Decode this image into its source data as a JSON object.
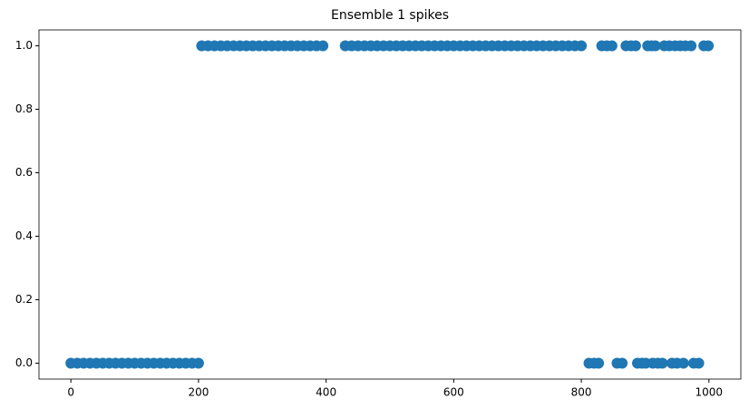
{
  "chart_data": {
    "type": "scatter",
    "title": "Ensemble 1 spikes",
    "series": [
      {
        "color": "#1f77b4",
        "x": [
          0,
          10,
          20,
          30,
          40,
          50,
          60,
          70,
          80,
          90,
          100,
          110,
          120,
          130,
          140,
          150,
          160,
          170,
          180,
          190,
          200,
          205,
          215,
          225,
          235,
          245,
          255,
          265,
          275,
          285,
          295,
          305,
          315,
          325,
          335,
          345,
          355,
          365,
          375,
          385,
          395,
          430,
          440,
          450,
          460,
          470,
          480,
          490,
          500,
          510,
          520,
          530,
          540,
          550,
          560,
          570,
          580,
          590,
          600,
          610,
          620,
          630,
          640,
          650,
          660,
          670,
          680,
          690,
          700,
          710,
          720,
          730,
          740,
          750,
          760,
          770,
          780,
          790,
          800,
          812,
          820,
          827,
          832,
          840,
          848,
          856,
          864,
          870,
          878,
          885,
          888,
          895,
          901,
          904,
          910,
          912,
          916,
          920,
          927,
          930,
          938,
          942,
          947,
          950,
          955,
          960,
          963,
          972,
          976,
          984,
          992,
          999
        ],
        "values": [
          0,
          0,
          0,
          0,
          0,
          0,
          0,
          0,
          0,
          0,
          0,
          0,
          0,
          0,
          0,
          0,
          0,
          0,
          0,
          0,
          0,
          1,
          1,
          1,
          1,
          1,
          1,
          1,
          1,
          1,
          1,
          1,
          1,
          1,
          1,
          1,
          1,
          1,
          1,
          1,
          1,
          1,
          1,
          1,
          1,
          1,
          1,
          1,
          1,
          1,
          1,
          1,
          1,
          1,
          1,
          1,
          1,
          1,
          1,
          1,
          1,
          1,
          1,
          1,
          1,
          1,
          1,
          1,
          1,
          1,
          1,
          1,
          1,
          1,
          1,
          1,
          1,
          1,
          1,
          0,
          0,
          0,
          1,
          1,
          1,
          0,
          0,
          1,
          1,
          1,
          0,
          0,
          0,
          1,
          1,
          0,
          1,
          0,
          0,
          1,
          1,
          0,
          1,
          0,
          1,
          0,
          1,
          1,
          0,
          0,
          1,
          1
        ]
      }
    ],
    "xlim": [
      -50,
      1050
    ],
    "xticks": [
      0,
      200,
      400,
      600,
      800,
      1000
    ],
    "ylim": [
      -0.05,
      1.05
    ],
    "yticks": [
      {
        "value": 0,
        "label": "0.0"
      },
      {
        "value": 0.2,
        "label": "0.2"
      },
      {
        "value": 0.4,
        "label": "0.4"
      },
      {
        "value": 0.6,
        "label": "0.6"
      },
      {
        "value": 0.8,
        "label": "0.8"
      },
      {
        "value": 1,
        "label": "1.0"
      }
    ]
  }
}
